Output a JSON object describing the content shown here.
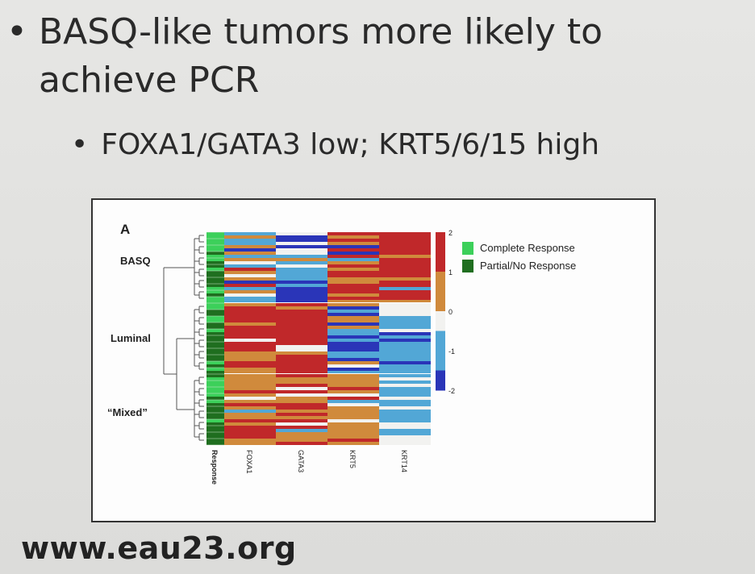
{
  "slide": {
    "bullet1": "BASQ-like tumors more likely to achieve PCR",
    "bullet2": "FOXA1/GATA3 low; KRT5/6/15 high",
    "footer_url": "www.eau23.org"
  },
  "chart_data": {
    "type": "heatmap",
    "panel_label": "A",
    "columns": [
      "Response",
      "FOXA1",
      "GATA3",
      "KRT5",
      "KRT14"
    ],
    "row_groups": [
      "BASQ",
      "Luminal",
      "“Mixed”"
    ],
    "colorbar": {
      "min": -2,
      "max": 2,
      "ticks": [
        "2",
        "1",
        "0",
        "-1",
        "-2"
      ]
    },
    "legend": [
      {
        "label": "Complete Response",
        "color": "#3cd05a"
      },
      {
        "label": "Partial/No Response",
        "color": "#1f6e1f"
      }
    ],
    "colors": {
      "high": "#c0282a",
      "mid_high": "#d08a3c",
      "neutral": "#f2f2f0",
      "mid_low": "#52a7d6",
      "low": "#2a35b8"
    }
  }
}
